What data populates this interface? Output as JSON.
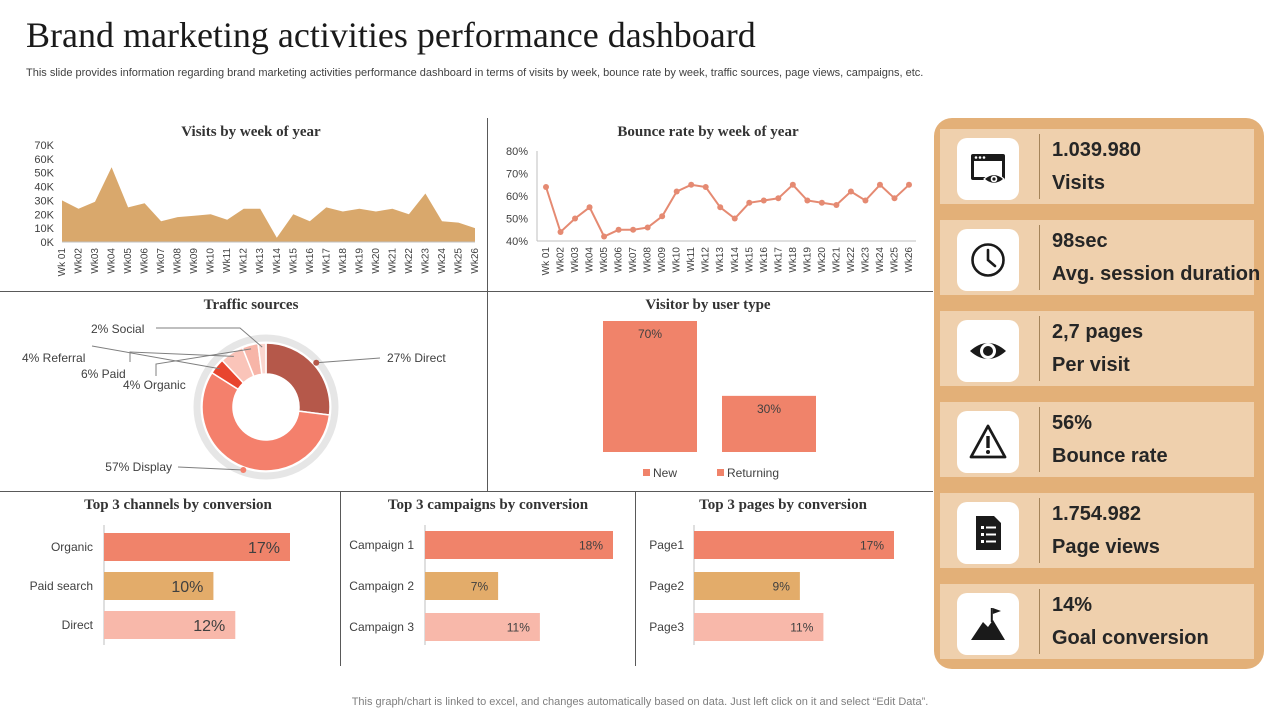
{
  "header": {
    "title": "Brand marketing activities performance dashboard",
    "subtitle": "This slide provides information regarding brand marketing activities performance dashboard in terms of visits by week, bounce rate by week, traffic sources, page views, campaigns, etc."
  },
  "footer": {
    "note": "This graph/chart is linked to excel,  and changes automatically based on data. Just left click on it and select “Edit Data”."
  },
  "kpis": [
    {
      "icon": "browser-eye-icon",
      "value": "1.039.980",
      "label": "Visits"
    },
    {
      "icon": "clock-icon",
      "value": "98sec",
      "label": "Avg. session duration"
    },
    {
      "icon": "eye-icon",
      "value": "2,7 pages",
      "label": "Per visit"
    },
    {
      "icon": "warning-icon",
      "value": "56%",
      "label": "Bounce rate"
    },
    {
      "icon": "document-list-icon",
      "value": "1.754.982",
      "label": "Page views"
    },
    {
      "icon": "mountain-flag-icon",
      "value": "14%",
      "label": "Goal conversion"
    }
  ],
  "colors": {
    "area": "#d9a86c",
    "line": "#e58a72",
    "salmon": "#f0836a",
    "tan": "#e3ac6a",
    "pink": "#f8b8aa",
    "brown": "#b5584a",
    "panel": "#e3b078",
    "card": "#efd0ad"
  },
  "chart_data": [
    {
      "id": "visits",
      "type": "area",
      "title": "Visits by week of year",
      "categories": [
        "Wk 01",
        "Wk02",
        "Wk03",
        "Wk04",
        "Wk05",
        "Wk06",
        "Wk07",
        "Wk08",
        "Wk09",
        "Wk10",
        "Wk11",
        "Wk12",
        "Wk13",
        "Wk14",
        "Wk15",
        "Wk16",
        "Wk17",
        "Wk18",
        "Wk19",
        "Wk20",
        "Wk21",
        "Wk22",
        "Wk23",
        "Wk24",
        "Wk25",
        "Wk26"
      ],
      "values": [
        30000,
        24000,
        29000,
        54000,
        25000,
        28000,
        15000,
        18000,
        19000,
        20000,
        16000,
        24000,
        24000,
        3000,
        20000,
        15000,
        25000,
        22000,
        24000,
        22000,
        24000,
        20000,
        35000,
        15000,
        14000,
        10000
      ],
      "ylim": [
        0,
        70000
      ],
      "yticks": [
        0,
        10000,
        20000,
        30000,
        40000,
        50000,
        60000,
        70000
      ],
      "ytick_labels": [
        "0K",
        "10K",
        "20K",
        "30K",
        "40K",
        "50K",
        "60K",
        "70K"
      ]
    },
    {
      "id": "bounce",
      "type": "line",
      "title": "Bounce rate by week of year",
      "categories": [
        "Wk 01",
        "Wk02",
        "Wk03",
        "Wk04",
        "Wk05",
        "Wk06",
        "Wk07",
        "Wk08",
        "Wk09",
        "Wk10",
        "Wk11",
        "Wk12",
        "Wk13",
        "Wk14",
        "Wk15",
        "Wk16",
        "Wk17",
        "Wk18",
        "Wk19",
        "Wk20",
        "Wk21",
        "Wk22",
        "Wk23",
        "Wk24",
        "Wk25",
        "Wk26"
      ],
      "values": [
        64,
        44,
        50,
        55,
        42,
        45,
        45,
        46,
        51,
        62,
        65,
        64,
        55,
        50,
        57,
        58,
        59,
        65,
        58,
        57,
        56,
        62,
        58,
        65,
        59,
        65
      ],
      "ylim": [
        40,
        80
      ],
      "yticks": [
        40,
        50,
        60,
        70,
        80
      ],
      "ytick_labels": [
        "40%",
        "50%",
        "60%",
        "70%",
        "80%"
      ]
    },
    {
      "id": "traffic",
      "type": "pie",
      "title": "Traffic sources",
      "labels": [
        "Direct",
        "Display",
        "Organic",
        "Paid",
        "Referral",
        "Social"
      ],
      "values": [
        27,
        57,
        4,
        6,
        4,
        2
      ],
      "slice_labels": [
        "27% Direct",
        "57% Display",
        "4% Organic",
        "6% Paid",
        "4% Referral",
        "2% Social"
      ]
    },
    {
      "id": "visitor",
      "type": "bar",
      "title": "Visitor by user type",
      "categories": [
        "New",
        "Returning"
      ],
      "values": [
        70,
        30
      ],
      "data_labels": [
        "70%",
        "30%"
      ],
      "ylim": [
        0,
        70
      ]
    },
    {
      "id": "channels",
      "type": "bar",
      "orientation": "horizontal",
      "title": "Top 3 channels by conversion",
      "categories": [
        "Organic",
        "Paid search",
        "Direct"
      ],
      "values": [
        17,
        10,
        12
      ],
      "data_labels": [
        "17%",
        "10%",
        "12%"
      ],
      "xlim": [
        0,
        17
      ]
    },
    {
      "id": "campaigns",
      "type": "bar",
      "orientation": "horizontal",
      "title": "Top 3 campaigns  by conversion",
      "categories": [
        "Campaign 1",
        "Campaign 2",
        "Campaign 3"
      ],
      "values": [
        18,
        7,
        11
      ],
      "data_labels": [
        "18%",
        "7%",
        "11%"
      ],
      "xlim": [
        0,
        18
      ]
    },
    {
      "id": "pages",
      "type": "bar",
      "orientation": "horizontal",
      "title": "Top 3 pages by conversion",
      "categories": [
        "Page1",
        "Page2",
        "Page3"
      ],
      "values": [
        17,
        9,
        11
      ],
      "data_labels": [
        "17%",
        "9%",
        "11%"
      ],
      "xlim": [
        0,
        17
      ]
    }
  ]
}
